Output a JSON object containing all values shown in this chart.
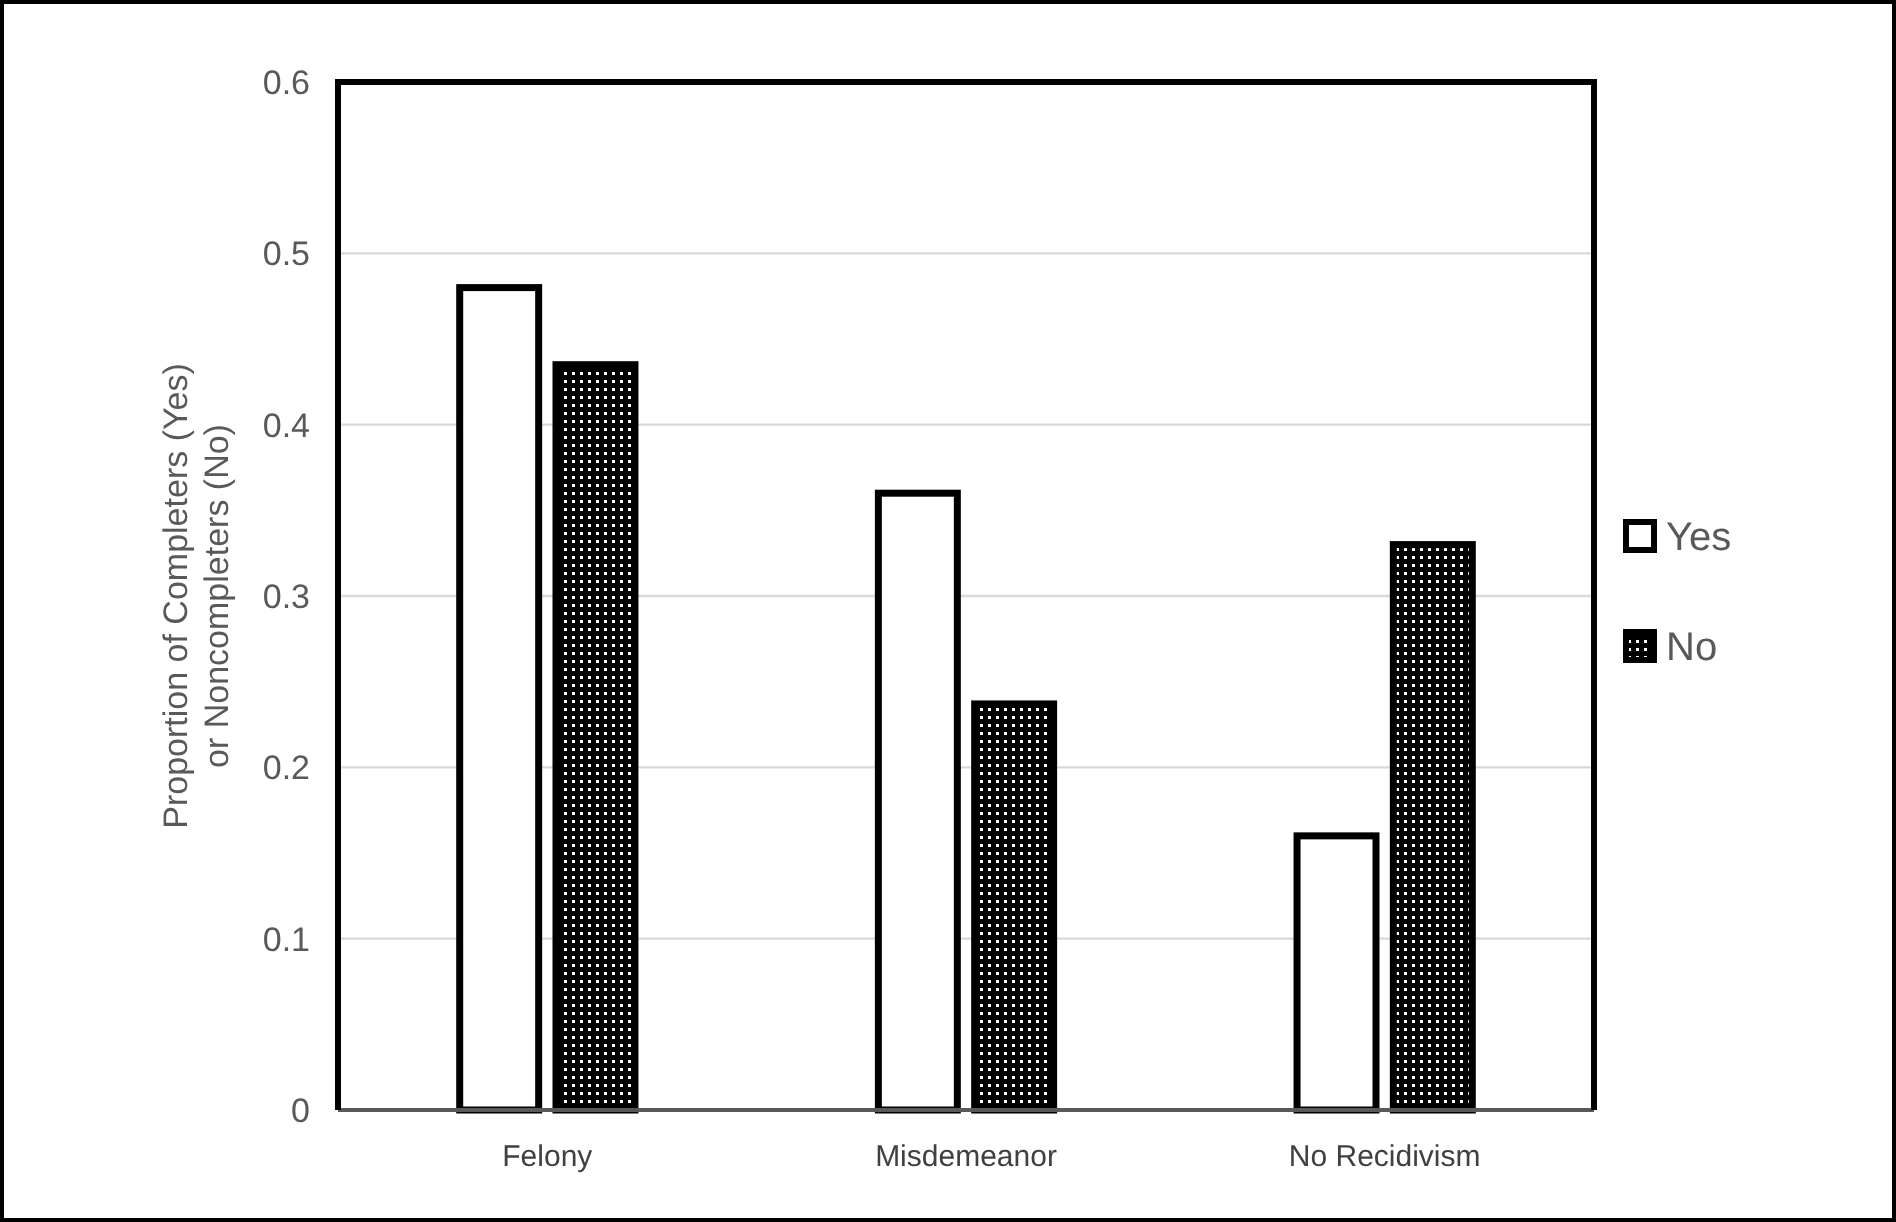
{
  "chart_data": {
    "type": "bar",
    "ylabel": "Proportion of Completers (Yes) or Noncompleters (No)",
    "categories": [
      "Felony",
      "Misdemeanor",
      "No Recidivism"
    ],
    "series": [
      {
        "name": "Yes",
        "color": "#ffffff",
        "values": [
          0.48,
          0.36,
          0.16
        ]
      },
      {
        "name": "No",
        "color": "#000000",
        "values": [
          0.435,
          0.237,
          0.33
        ]
      }
    ],
    "ylim": [
      0,
      0.6
    ],
    "yticks": [
      0,
      0.1,
      0.2,
      0.3,
      0.4,
      0.5,
      0.6
    ],
    "grid": "y",
    "legend": "right"
  }
}
